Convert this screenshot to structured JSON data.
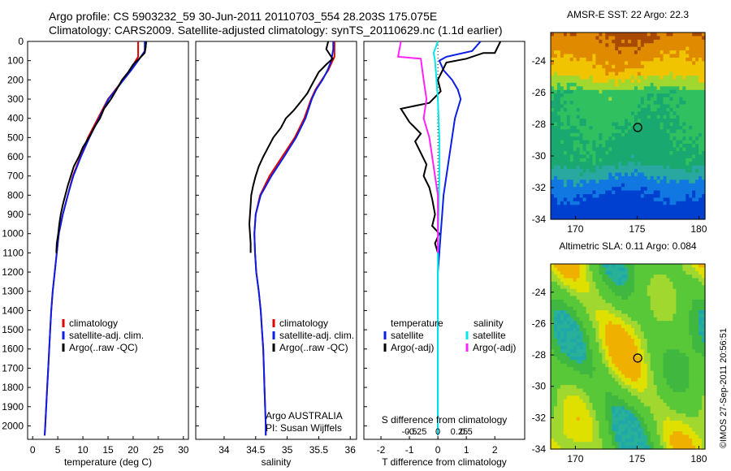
{
  "header": {
    "line1": "Argo profile: CS 5903232_59 30-Jun-2011 20110703_554 28.203S 175.075E",
    "line2": "Climatology: CARS2009. Satellite-adjusted climatology: synTS_20110629.nc (1.1d earlier)"
  },
  "stamp": "©IMOS 27-Sep-2011 20:56:51",
  "colors": {
    "climatology": "#e00000",
    "satellite": "#0a1ee6",
    "argo": "#000000",
    "sal_satellite": "#00e8e8",
    "sal_argo": "#ff22ff"
  },
  "chart_data": [
    {
      "type": "line",
      "panel": "temperature",
      "xlabel": "temperature (deg C)",
      "ylabel": "",
      "xlim": [
        -1,
        31
      ],
      "ylim": [
        2070,
        0
      ],
      "xticks": [
        "0",
        "5",
        "10",
        "15",
        "20",
        "25",
        "30"
      ],
      "yticks": [
        "0",
        "100",
        "200",
        "300",
        "400",
        "500",
        "600",
        "700",
        "800",
        "900",
        "1000",
        "1100",
        "1200",
        "1300",
        "1400",
        "1500",
        "1600",
        "1700",
        "1800",
        "1900",
        "2000"
      ],
      "legend": [
        "climatology",
        "satellite-adj. clim.",
        "Argo(..raw -QC)"
      ],
      "grid": false,
      "series": [
        {
          "name": "climatology",
          "points": [
            [
              21.0,
              0
            ],
            [
              21.0,
              80
            ],
            [
              20.5,
              100
            ],
            [
              19.5,
              150
            ],
            [
              18.0,
              200
            ],
            [
              16.5,
              250
            ],
            [
              15.0,
              300
            ],
            [
              13.0,
              400
            ],
            [
              11.0,
              500
            ],
            [
              9.5,
              600
            ],
            [
              8.0,
              700
            ],
            [
              7.0,
              800
            ],
            [
              6.0,
              900
            ],
            [
              5.2,
              1000
            ],
            [
              4.8,
              1100
            ],
            [
              4.4,
              1200
            ],
            [
              4.0,
              1300
            ],
            [
              3.7,
              1400
            ],
            [
              3.5,
              1500
            ],
            [
              3.3,
              1600
            ],
            [
              3.1,
              1700
            ],
            [
              2.9,
              1800
            ],
            [
              2.7,
              1900
            ],
            [
              2.5,
              2000
            ],
            [
              2.4,
              2050
            ]
          ]
        },
        {
          "name": "satellite-adj. clim.",
          "points": [
            [
              22.3,
              0
            ],
            [
              22.3,
              50
            ],
            [
              21.0,
              100
            ],
            [
              19.6,
              150
            ],
            [
              18.1,
              200
            ],
            [
              16.6,
              250
            ],
            [
              15.1,
              300
            ],
            [
              13.2,
              400
            ],
            [
              11.3,
              500
            ],
            [
              9.6,
              600
            ],
            [
              8.1,
              700
            ],
            [
              7.0,
              800
            ],
            [
              6.0,
              900
            ],
            [
              5.2,
              1000
            ],
            [
              4.8,
              1100
            ],
            [
              4.4,
              1200
            ],
            [
              4.0,
              1300
            ],
            [
              3.7,
              1400
            ],
            [
              3.5,
              1500
            ],
            [
              3.3,
              1600
            ],
            [
              3.1,
              1700
            ],
            [
              2.9,
              1800
            ],
            [
              2.7,
              1900
            ],
            [
              2.5,
              2000
            ],
            [
              2.4,
              2050
            ]
          ]
        },
        {
          "name": "Argo(..raw -QC)",
          "points": [
            [
              22.6,
              0
            ],
            [
              22.5,
              30
            ],
            [
              22.3,
              60
            ],
            [
              21.2,
              90
            ],
            [
              20.0,
              120
            ],
            [
              19.0,
              160
            ],
            [
              17.8,
              200
            ],
            [
              16.5,
              260
            ],
            [
              15.6,
              300
            ],
            [
              14.2,
              350
            ],
            [
              13.4,
              400
            ],
            [
              12.2,
              450
            ],
            [
              11.2,
              500
            ],
            [
              10.0,
              550
            ],
            [
              9.2,
              600
            ],
            [
              8.2,
              650
            ],
            [
              7.6,
              700
            ],
            [
              7.0,
              750
            ],
            [
              6.5,
              800
            ],
            [
              6.0,
              850
            ],
            [
              5.6,
              900
            ],
            [
              5.3,
              950
            ],
            [
              5.1,
              1000
            ],
            [
              4.8,
              1050
            ],
            [
              4.7,
              1100
            ]
          ]
        }
      ]
    },
    {
      "type": "line",
      "panel": "salinity",
      "xlabel": "salinity",
      "xlim": [
        33.55,
        36.1
      ],
      "ylim": [
        2070,
        0
      ],
      "xticks": [
        "34",
        "34.5",
        "35",
        "35.5",
        "36"
      ],
      "legend": [
        "climatology",
        "satellite-adj. clim.",
        "Argo(..raw -QC)"
      ],
      "annotation": [
        "Argo AUSTRALIA",
        "PI: Susan Wijffels"
      ],
      "series": [
        {
          "name": "climatology",
          "points": [
            [
              35.75,
              0
            ],
            [
              35.75,
              80
            ],
            [
              35.72,
              100
            ],
            [
              35.65,
              150
            ],
            [
              35.55,
              200
            ],
            [
              35.45,
              250
            ],
            [
              35.38,
              300
            ],
            [
              35.27,
              400
            ],
            [
              35.12,
              500
            ],
            [
              34.92,
              600
            ],
            [
              34.72,
              700
            ],
            [
              34.57,
              800
            ],
            [
              34.5,
              900
            ],
            [
              34.48,
              1000
            ],
            [
              34.49,
              1100
            ],
            [
              34.51,
              1200
            ],
            [
              34.55,
              1300
            ],
            [
              34.58,
              1400
            ],
            [
              34.6,
              1500
            ],
            [
              34.62,
              1600
            ],
            [
              34.63,
              1700
            ],
            [
              34.64,
              1800
            ],
            [
              34.65,
              1900
            ],
            [
              34.66,
              2000
            ],
            [
              34.66,
              2050
            ]
          ]
        },
        {
          "name": "satellite-adj. clim.",
          "points": [
            [
              35.73,
              0
            ],
            [
              35.73,
              40
            ],
            [
              35.7,
              100
            ],
            [
              35.64,
              150
            ],
            [
              35.56,
              200
            ],
            [
              35.46,
              250
            ],
            [
              35.39,
              300
            ],
            [
              35.29,
              400
            ],
            [
              35.14,
              500
            ],
            [
              34.95,
              600
            ],
            [
              34.75,
              700
            ],
            [
              34.58,
              800
            ],
            [
              34.5,
              900
            ],
            [
              34.48,
              1000
            ],
            [
              34.49,
              1100
            ],
            [
              34.51,
              1200
            ],
            [
              34.55,
              1300
            ],
            [
              34.58,
              1400
            ],
            [
              34.6,
              1500
            ],
            [
              34.62,
              1600
            ],
            [
              34.63,
              1700
            ],
            [
              34.64,
              1800
            ],
            [
              34.65,
              1900
            ],
            [
              34.66,
              2000
            ],
            [
              34.66,
              2050
            ]
          ]
        },
        {
          "name": "Argo(..raw -QC)",
          "points": [
            [
              35.65,
              0
            ],
            [
              35.62,
              40
            ],
            [
              35.72,
              90
            ],
            [
              35.62,
              120
            ],
            [
              35.5,
              160
            ],
            [
              35.4,
              220
            ],
            [
              35.32,
              270
            ],
            [
              35.2,
              320
            ],
            [
              35.1,
              360
            ],
            [
              34.98,
              400
            ],
            [
              34.9,
              450
            ],
            [
              34.78,
              500
            ],
            [
              34.7,
              550
            ],
            [
              34.62,
              600
            ],
            [
              34.55,
              650
            ],
            [
              34.5,
              700
            ],
            [
              34.46,
              750
            ],
            [
              34.43,
              800
            ],
            [
              34.42,
              850
            ],
            [
              34.41,
              900
            ],
            [
              34.4,
              950
            ],
            [
              34.41,
              1000
            ],
            [
              34.42,
              1050
            ],
            [
              34.42,
              1100
            ]
          ]
        }
      ]
    },
    {
      "type": "line",
      "panel": "difference",
      "xlabel": "T difference from climatology",
      "xlabel2": "S difference from climatology",
      "xlim": [
        -2.6,
        3.05
      ],
      "ylim": [
        2070,
        0
      ],
      "xticks": [
        "-2",
        "-1",
        "0",
        "1",
        "2"
      ],
      "xticks_s": [
        "-0.5",
        "-0.25",
        "0",
        "0.25",
        "0.5"
      ],
      "legend_titles": [
        "temperature",
        "salinity"
      ],
      "legend": [
        "satellite",
        "Argo(-adj)",
        "satellite",
        "Argo(-adj)"
      ],
      "series": [
        {
          "name": "satellite",
          "points": [
            [
              1.5,
              0
            ],
            [
              1.2,
              50
            ],
            [
              0.3,
              80
            ],
            [
              0.05,
              100
            ],
            [
              0.2,
              150
            ],
            [
              0.5,
              200
            ],
            [
              0.7,
              250
            ],
            [
              0.8,
              300
            ],
            [
              0.6,
              400
            ],
            [
              0.5,
              500
            ],
            [
              0.4,
              600
            ],
            [
              0.3,
              700
            ],
            [
              0.2,
              800
            ],
            [
              0.15,
              900
            ],
            [
              0.1,
              1000
            ],
            [
              0.05,
              1100
            ],
            [
              0.0,
              1200
            ],
            [
              0.0,
              1300
            ],
            [
              0.0,
              2050
            ]
          ]
        },
        {
          "name": "Argo(-adj)",
          "points": [
            [
              2.2,
              0
            ],
            [
              2.0,
              60
            ],
            [
              1.6,
              60
            ],
            [
              1.0,
              90
            ],
            [
              0.3,
              110
            ],
            [
              0.0,
              200
            ],
            [
              0.1,
              260
            ],
            [
              -0.3,
              320
            ],
            [
              -1.3,
              350
            ],
            [
              -1.0,
              420
            ],
            [
              -0.6,
              480
            ],
            [
              -0.8,
              520
            ],
            [
              -0.6,
              580
            ],
            [
              -0.4,
              640
            ],
            [
              -0.5,
              700
            ],
            [
              -0.3,
              760
            ],
            [
              -0.2,
              820
            ],
            [
              -0.1,
              900
            ],
            [
              -0.2,
              960
            ],
            [
              0.05,
              1000
            ],
            [
              -0.1,
              1050
            ],
            [
              0.0,
              1100
            ]
          ]
        },
        {
          "name": "salinity satellite",
          "points": [
            [
              0.0,
              0
            ],
            [
              -0.15,
              60
            ],
            [
              -0.1,
              100
            ],
            [
              -0.05,
              200
            ],
            [
              0.0,
              300
            ],
            [
              0.05,
              500
            ],
            [
              0.05,
              700
            ],
            [
              0.02,
              900
            ],
            [
              0.0,
              1100
            ],
            [
              0.0,
              2050
            ]
          ]
        },
        {
          "name": "salinity Argo(-adj)",
          "points": [
            [
              -1.3,
              0
            ],
            [
              -1.4,
              80
            ],
            [
              -0.6,
              90
            ],
            [
              -0.5,
              200
            ],
            [
              -0.4,
              300
            ],
            [
              -0.5,
              400
            ],
            [
              -0.3,
              500
            ],
            [
              -0.2,
              600
            ],
            [
              -0.1,
              700
            ],
            [
              0.0,
              800
            ],
            [
              0.0,
              900
            ],
            [
              0.0,
              1100
            ]
          ]
        }
      ]
    },
    {
      "type": "heatmap",
      "panel": "sst",
      "title": "AMSR-E SST: 22 Argo: 22.3",
      "xticks": [
        "170",
        "175",
        "180"
      ],
      "yticks": [
        "-24",
        "-26",
        "-28",
        "-30",
        "-32",
        "-34"
      ],
      "xlim": [
        168,
        180.5
      ],
      "ylim": [
        -34,
        -22.2
      ],
      "marker": [
        175.05,
        -28.2
      ],
      "colors": [
        "#a84a00",
        "#e08a00",
        "#f0c400",
        "#a0d830",
        "#30c060",
        "#18a870",
        "#28a8a0",
        "#1078e0",
        "#0040d0"
      ]
    },
    {
      "type": "heatmap",
      "panel": "sla",
      "title": "Altimetric SLA: 0.11 Argo: 0.084",
      "xticks": [
        "170",
        "175",
        "180"
      ],
      "yticks": [
        "-24",
        "-26",
        "-28",
        "-30",
        "-32",
        "-34"
      ],
      "xlim": [
        168,
        180.5
      ],
      "ylim": [
        -34,
        -22.2
      ],
      "marker": [
        175.05,
        -28.2
      ],
      "colors": [
        "#40b840",
        "#58c838",
        "#a0d830",
        "#e0e000",
        "#f0b000",
        "#28b098",
        "#20a8a8"
      ]
    }
  ]
}
